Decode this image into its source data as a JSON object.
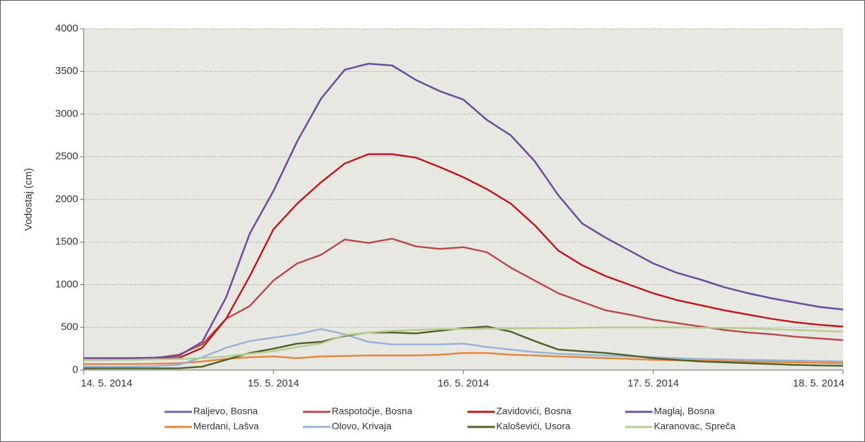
{
  "chart_data": {
    "type": "line",
    "y_label": "Vodostaj (cm)",
    "x": [
      0,
      0.125,
      0.25,
      0.375,
      0.5,
      0.625,
      0.75,
      0.875,
      1,
      1.125,
      1.25,
      1.375,
      1.5,
      1.625,
      1.75,
      1.875,
      2,
      2.125,
      2.25,
      2.375,
      2.5,
      2.625,
      2.75,
      2.875,
      3,
      3.125,
      3.25,
      3.375,
      3.5,
      3.625,
      3.75,
      3.875,
      4
    ],
    "xlim": [
      0,
      4
    ],
    "xticks": [
      {
        "value": 0,
        "label": "14. 5. 2014"
      },
      {
        "value": 1,
        "label": "15. 5. 2014"
      },
      {
        "value": 2,
        "label": "16. 5. 2014"
      },
      {
        "value": 3,
        "label": "17. 5. 2014"
      },
      {
        "value": 4,
        "label": "18. 5. 2014"
      }
    ],
    "ylim": [
      0,
      4000
    ],
    "yticks": [
      0,
      500,
      1000,
      1500,
      2000,
      2500,
      3000,
      3500,
      4000
    ],
    "grid": true,
    "series": [
      {
        "name": "Raljevo, Bosna",
        "color": "#7b5ea7",
        "values": [
          140,
          140,
          140,
          145,
          165,
          330,
          850,
          1600,
          2100,
          2680,
          3180,
          3520,
          3590,
          3570,
          3400,
          3270,
          3170,
          2930,
          2750,
          2450,
          2050,
          1720,
          1550,
          1400,
          1250,
          1140,
          1060,
          970,
          900,
          840,
          790,
          740,
          710
        ]
      },
      {
        "name": "Raspotočje, Bosna",
        "color": "#b94a48",
        "values": [
          130,
          130,
          130,
          140,
          180,
          300,
          600,
          750,
          1050,
          1250,
          1350,
          1530,
          1490,
          1540,
          1450,
          1420,
          1440,
          1380,
          1200,
          1050,
          900,
          800,
          700,
          650,
          590,
          550,
          510,
          470,
          440,
          420,
          390,
          370,
          350
        ]
      },
      {
        "name": "Zavidovići, Bosna",
        "color": "#c0161b",
        "values": [
          120,
          120,
          125,
          130,
          140,
          260,
          600,
          1100,
          1650,
          1950,
          2200,
          2420,
          2530,
          2530,
          2490,
          2380,
          2260,
          2120,
          1950,
          1700,
          1400,
          1230,
          1100,
          1000,
          900,
          820,
          760,
          700,
          650,
          600,
          560,
          530,
          510
        ]
      },
      {
        "name": "Maglaj, Bosna",
        "color": "#6f4f9e",
        "values": [
          140,
          140,
          140,
          145,
          165,
          330,
          850,
          1600,
          2100,
          2680,
          3180,
          3520,
          3590,
          3570,
          3400,
          3270,
          3170,
          2930,
          2750,
          2450,
          2050,
          1720,
          1550,
          1400,
          1250,
          1140,
          1060,
          970,
          900,
          840,
          790,
          740,
          710
        ]
      },
      {
        "name": "Merdani, Lašva",
        "color": "#e8853a",
        "values": [
          70,
          70,
          70,
          75,
          80,
          100,
          130,
          150,
          160,
          140,
          160,
          165,
          170,
          170,
          170,
          180,
          200,
          200,
          180,
          170,
          160,
          150,
          140,
          130,
          120,
          115,
          110,
          105,
          100,
          95,
          90,
          85,
          80
        ]
      },
      {
        "name": "Olovo, Krivaja",
        "color": "#95b3d7",
        "values": [
          40,
          40,
          40,
          45,
          60,
          150,
          260,
          340,
          380,
          420,
          480,
          420,
          330,
          300,
          300,
          300,
          310,
          270,
          240,
          210,
          190,
          180,
          170,
          160,
          150,
          140,
          130,
          125,
          120,
          115,
          110,
          105,
          100
        ]
      },
      {
        "name": "Kaloševići, Usora",
        "color": "#4f6228",
        "values": [
          20,
          20,
          20,
          20,
          20,
          40,
          120,
          200,
          250,
          310,
          330,
          400,
          440,
          440,
          430,
          460,
          490,
          510,
          450,
          340,
          240,
          220,
          200,
          170,
          140,
          120,
          100,
          90,
          80,
          70,
          60,
          55,
          50
        ]
      },
      {
        "name": "Karanovac, Spreča",
        "color": "#b3cf8f",
        "values": [
          120,
          120,
          120,
          125,
          130,
          140,
          160,
          190,
          220,
          270,
          310,
          410,
          440,
          460,
          470,
          480,
          480,
          485,
          485,
          490,
          490,
          495,
          500,
          500,
          500,
          500,
          495,
          495,
          490,
          480,
          470,
          460,
          450
        ]
      }
    ]
  }
}
